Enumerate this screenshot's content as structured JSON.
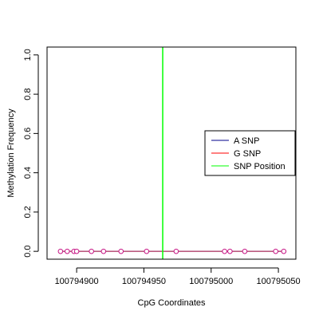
{
  "chart_data": {
    "type": "line",
    "title": "",
    "xlabel": "CpG Coordinates",
    "ylabel": "Methylation Frequency",
    "xlim": [
      100794878,
      100795063
    ],
    "ylim": [
      -0.04,
      1.04
    ],
    "x_ticks": [
      100794900,
      100794950,
      100795000,
      100795050
    ],
    "x_tick_labels": [
      "100794900",
      "100794950",
      "100795000",
      "100795050"
    ],
    "y_ticks": [
      0.0,
      0.2,
      0.4,
      0.6,
      0.8,
      1.0
    ],
    "y_tick_labels": [
      "0.0",
      "0.2",
      "0.4",
      "0.6",
      "0.8",
      "1.0"
    ],
    "grid": false,
    "legend_position": "right",
    "series": [
      {
        "name": "A SNP",
        "color": "#00008B",
        "x": [
          100794888,
          100794893,
          100794898,
          100794900,
          100794911,
          100794920,
          100794933,
          100794952,
          100794974,
          100795010,
          100795014,
          100795025,
          100795048,
          100795054
        ],
        "y": [
          0,
          0,
          0,
          0,
          0,
          0,
          0,
          0,
          0,
          0,
          0,
          0,
          0,
          0
        ]
      },
      {
        "name": "G SNP",
        "color": "#FF0000",
        "x": [
          100794888,
          100794893,
          100794898,
          100794900,
          100794911,
          100794920,
          100794933,
          100794952,
          100794974,
          100795010,
          100795014,
          100795025,
          100795048,
          100795054
        ],
        "y": [
          0,
          0,
          0,
          0,
          0,
          0,
          0,
          0,
          0,
          0,
          0,
          0,
          0,
          0
        ]
      },
      {
        "name": "SNP Position",
        "color": "#00FF00",
        "type": "vline",
        "x": 100794964
      }
    ],
    "point_color": "#C71585"
  }
}
